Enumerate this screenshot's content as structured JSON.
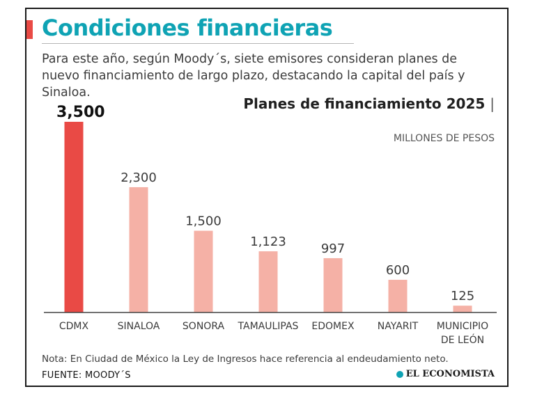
{
  "header": {
    "title": "Condiciones financieras",
    "subtitle": "Para este año, según Moody´s, siete emisores consideran planes de nuevo financiamiento de largo plazo, destacando la capital del país y Sinaloa."
  },
  "chart_data": {
    "type": "bar",
    "title": "Planes de financiamiento 2025",
    "units": "MILLONES DE PESOS",
    "categories": [
      "CDMX",
      "SINALOA",
      "SONORA",
      "TAMAULIPAS",
      "EDOMEX",
      "NAYARIT",
      "MUNICIPIO DE LEÓN"
    ],
    "category_lines": [
      [
        "CDMX"
      ],
      [
        "SINALOA"
      ],
      [
        "SONORA"
      ],
      [
        "TAMAULIPAS"
      ],
      [
        "EDOMEX"
      ],
      [
        "NAYARIT"
      ],
      [
        "MUNICIPIO",
        "DE LEÓN"
      ]
    ],
    "values": [
      3500,
      2300,
      1500,
      1123,
      997,
      600,
      125
    ],
    "value_labels": [
      "3,500",
      "2,300",
      "1,500",
      "1,123",
      "997",
      "600",
      "125"
    ],
    "ylim": [
      0,
      3500
    ],
    "highlight_index": 0,
    "colors": {
      "highlight": "#e94a45",
      "bar": "#f5b1a6",
      "axis": "#444444"
    },
    "grid": false,
    "legend": "none"
  },
  "footer": {
    "note": "Nota: En Ciudad de México la Ley de Ingresos hace referencia al endeudamiento neto.",
    "source": "FUENTE: MOODY´S",
    "brand": "EL ECONOMISTA",
    "brand_icon": "globe-icon"
  }
}
